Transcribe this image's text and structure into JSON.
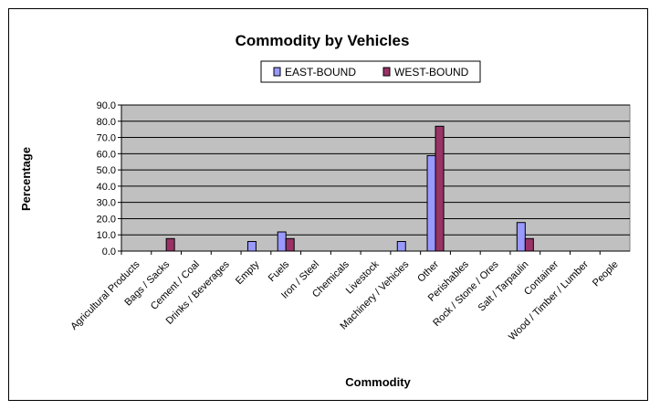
{
  "chart_data": {
    "type": "bar",
    "title": "Commodity by Vehicles",
    "xlabel": "Commodity",
    "ylabel": "Percentage",
    "ylim": [
      0,
      90
    ],
    "yticks": [
      "0.0",
      "10.0",
      "20.0",
      "30.0",
      "40.0",
      "50.0",
      "60.0",
      "70.0",
      "80.0",
      "90.0"
    ],
    "grid": true,
    "legend_position": "top-center",
    "categories": [
      "Agricultural Products",
      "Bags / Sacks",
      "Cement / Coal",
      "Drinks / Beverages",
      "Empty",
      "Fuels",
      "Iron / Steel",
      "Chemicals",
      "Livestock",
      "Machinery / Vehicles",
      "Other",
      "Perishables",
      "Rock / Stone / Ores",
      "Salt / Tarpaulin",
      "Container",
      "Wood / Timber / Lumber",
      "People"
    ],
    "series": [
      {
        "name": "EAST-BOUND",
        "color": "#9999ff",
        "values": [
          0,
          0,
          0,
          0,
          5.9,
          11.8,
          0,
          0,
          0,
          5.9,
          58.8,
          0,
          0,
          17.6,
          0,
          0,
          0
        ]
      },
      {
        "name": "WEST-BOUND",
        "color": "#993366",
        "values": [
          0,
          7.7,
          0,
          0,
          0,
          7.7,
          0,
          0,
          0,
          0,
          76.9,
          0,
          0,
          7.7,
          0,
          0,
          0
        ]
      }
    ],
    "plot_background": "#c0c0c0"
  }
}
